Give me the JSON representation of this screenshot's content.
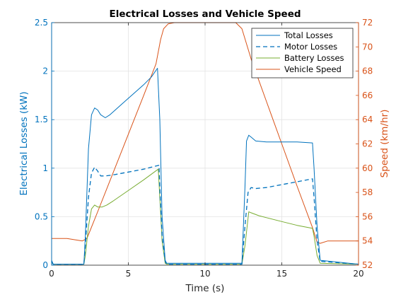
{
  "chart_data": {
    "type": "line",
    "title": "Electrical Losses and Vehicle Speed",
    "xlabel": "Time (s)",
    "ylabel_left": "Electrical Losses (kW)",
    "ylabel_right": "Speed (km/hr)",
    "xlim": [
      0,
      20
    ],
    "ylim_left": [
      0,
      2.5
    ],
    "ylim_right": [
      52,
      72
    ],
    "x_ticks": [
      0,
      5,
      10,
      15,
      20
    ],
    "y_ticks_left": [
      0,
      0.5,
      1,
      1.5,
      2,
      2.5
    ],
    "y_ticks_right": [
      52,
      54,
      56,
      58,
      60,
      62,
      64,
      66,
      68,
      70,
      72
    ],
    "grid": true,
    "legend_position": "top-right",
    "colors": {
      "blue": "#0072bd",
      "orange": "#d95319",
      "green": "#77ac30",
      "grid": "#e3e3e3",
      "axis": "#262626"
    },
    "series": [
      {
        "name": "Total Losses",
        "axis": "left",
        "style": "solid",
        "color": "#0072bd",
        "x": [
          0,
          0.1,
          0.3,
          2.1,
          2.2,
          2.4,
          2.6,
          2.8,
          3.0,
          3.2,
          3.5,
          3.8,
          4.5,
          5.0,
          6.0,
          6.5,
          6.9,
          7.05,
          7.2,
          7.4,
          7.5,
          10,
          12.4,
          12.6,
          12.7,
          12.85,
          13.0,
          13.3,
          14.0,
          15.0,
          16.0,
          17.0,
          17.1,
          17.3,
          17.5,
          20
        ],
        "y": [
          0.05,
          0.01,
          0.01,
          0.01,
          0.3,
          1.2,
          1.55,
          1.62,
          1.6,
          1.55,
          1.52,
          1.55,
          1.65,
          1.72,
          1.86,
          1.94,
          2.03,
          1.5,
          0.5,
          0.05,
          0.02,
          0.02,
          0.02,
          0.8,
          1.28,
          1.34,
          1.32,
          1.28,
          1.27,
          1.27,
          1.27,
          1.26,
          1.0,
          0.4,
          0.05,
          0.01
        ]
      },
      {
        "name": "Motor Losses",
        "axis": "left",
        "style": "dashed",
        "color": "#0072bd",
        "x": [
          0,
          0.1,
          0.3,
          2.1,
          2.2,
          2.4,
          2.6,
          2.8,
          3.0,
          3.2,
          3.5,
          4.0,
          5.0,
          6.0,
          7.0,
          7.05,
          7.2,
          7.4,
          7.5,
          10,
          12.4,
          12.6,
          12.8,
          13.0,
          13.3,
          14.0,
          15.0,
          16.0,
          17.0,
          17.1,
          17.3,
          17.5,
          20
        ],
        "y": [
          0.04,
          0.01,
          0.01,
          0.01,
          0.2,
          0.7,
          0.95,
          1.01,
          0.97,
          0.92,
          0.92,
          0.93,
          0.96,
          0.99,
          1.03,
          0.8,
          0.3,
          0.04,
          0.01,
          0.01,
          0.01,
          0.4,
          0.75,
          0.8,
          0.79,
          0.8,
          0.83,
          0.86,
          0.89,
          0.7,
          0.25,
          0.04,
          0.01
        ]
      },
      {
        "name": "Battery Losses",
        "axis": "left",
        "style": "solid",
        "color": "#77ac30",
        "x": [
          0,
          0.1,
          0.3,
          2.1,
          2.2,
          2.4,
          2.6,
          2.8,
          3.0,
          3.3,
          3.6,
          4.0,
          5.0,
          6.0,
          6.95,
          7.05,
          7.2,
          7.4,
          7.5,
          10,
          12.4,
          12.6,
          12.85,
          13.0,
          13.5,
          14.0,
          15.0,
          16.0,
          17.0,
          17.1,
          17.3,
          17.5,
          20
        ],
        "y": [
          0.03,
          0.01,
          0.01,
          0.01,
          0.1,
          0.4,
          0.58,
          0.62,
          0.6,
          0.6,
          0.62,
          0.66,
          0.77,
          0.88,
          0.99,
          0.7,
          0.25,
          0.02,
          0.01,
          0.01,
          0.01,
          0.2,
          0.55,
          0.54,
          0.51,
          0.49,
          0.45,
          0.41,
          0.38,
          0.3,
          0.1,
          0.02,
          0.01
        ]
      },
      {
        "name": "Vehicle Speed",
        "axis": "right",
        "style": "solid",
        "color": "#d95319",
        "x": [
          0,
          0.2,
          1.0,
          2.0,
          2.3,
          3.0,
          4.0,
          5.0,
          6.0,
          6.8,
          7.1,
          7.3,
          7.6,
          8.0,
          10.0,
          12.0,
          12.4,
          13.0,
          14.0,
          15.0,
          16.0,
          17.0,
          17.3,
          17.5,
          18.0,
          20.0
        ],
        "y": [
          54.2,
          54.2,
          54.2,
          54.0,
          54.2,
          56.4,
          59.6,
          62.8,
          66.0,
          68.6,
          70.6,
          71.5,
          71.9,
          72.0,
          72.0,
          72.0,
          71.5,
          69.0,
          65.5,
          62.0,
          58.5,
          55.1,
          53.9,
          53.8,
          54.0,
          54.0
        ]
      }
    ]
  }
}
